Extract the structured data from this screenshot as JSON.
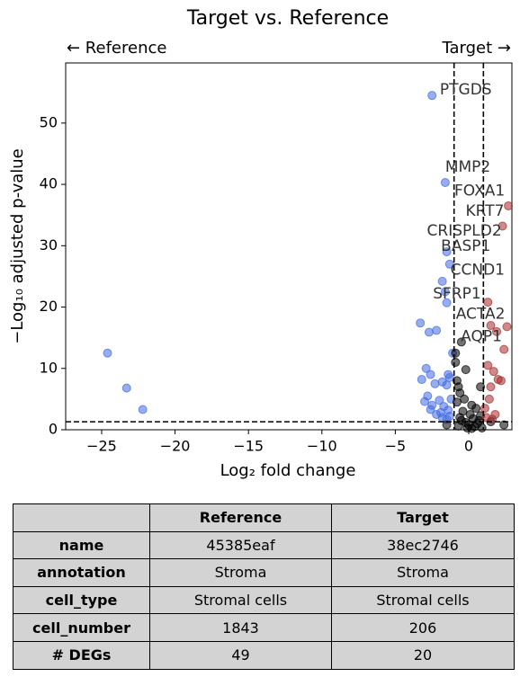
{
  "chart_data": {
    "type": "scatter",
    "title": "Target vs. Reference",
    "left_header": "← Reference",
    "right_header": "Target →",
    "xlabel": "Log₂ fold change",
    "ylabel": "−Log₁₀ adjusted p-value",
    "xlim": [
      -27.45,
      2.94
    ],
    "ylim": [
      0,
      59.8
    ],
    "xticks": [
      {
        "value": -25,
        "label": "−25"
      },
      {
        "value": -20,
        "label": "−20"
      },
      {
        "value": -15,
        "label": "−15"
      },
      {
        "value": -10,
        "label": "−10"
      },
      {
        "value": -5,
        "label": "−5"
      },
      0
    ],
    "yticks": [
      0,
      10,
      20,
      30,
      40,
      50
    ],
    "thresholds": {
      "x": [
        -1,
        1
      ],
      "y": 1.3
    },
    "series": [
      {
        "color": "#4169e1",
        "x": [
          -24.6,
          -23.3,
          -22.2,
          -2.5,
          -1.6,
          -1.5,
          -1.3,
          -1.8,
          -1.6,
          -1.5,
          -3.3,
          -2.7,
          -2.2,
          -1.1,
          -2.9,
          -2.6,
          -1.4,
          -1.3,
          -3.2,
          -2.3,
          -1.8,
          -1.5,
          -2.8,
          -3.0,
          -2.0,
          -1.2,
          -2.5,
          -1.7,
          -1.4,
          -2.2,
          -1.8,
          -1.5,
          -1.3,
          -2.6,
          -1.9
        ],
        "y": [
          12.5,
          6.8,
          3.3,
          54.5,
          40.3,
          29,
          27,
          24.2,
          22.5,
          20.7,
          17.4,
          15.9,
          16.2,
          12.5,
          10,
          9,
          9,
          8.5,
          8.2,
          7.5,
          7.8,
          7.3,
          5.5,
          4.6,
          4.8,
          5,
          4,
          3.8,
          3.2,
          2.5,
          2,
          1.7,
          2.2,
          3.3,
          2.8
        ]
      },
      {
        "color": "#000000",
        "x": [
          -0.5,
          -0.9,
          -0.9,
          -0.2,
          -0.8,
          -0.7,
          -0.6,
          -0.8,
          -0.3,
          0.8,
          0.2,
          0.5,
          -0.4,
          0.1,
          -0.6,
          0.3,
          0.7,
          -0.2,
          0,
          0.4,
          -0.7,
          0.6,
          -0.1,
          0.9,
          -0.5,
          0.2,
          1.5,
          2.4,
          -1.5,
          0.8
        ],
        "y": [
          14.3,
          12.5,
          11,
          9.8,
          8,
          7,
          6,
          4.5,
          5,
          7,
          4,
          3.5,
          3,
          2.5,
          2,
          1.8,
          1.5,
          1.2,
          0.8,
          0.5,
          0.6,
          1,
          0.3,
          0.3,
          1.5,
          0.2,
          1.3,
          0.8,
          0.8,
          2.3
        ]
      },
      {
        "color": "#a52a2a",
        "x": [
          2.7,
          2.3,
          1.3,
          1.5,
          2.6,
          1.9,
          2.4,
          1.7,
          2.0,
          1.5,
          1.3,
          2.2,
          1.4,
          1.1,
          1.8,
          1.6,
          1.2
        ],
        "y": [
          36.5,
          33.2,
          20.8,
          17,
          16.8,
          16,
          13.1,
          9.5,
          8.2,
          7,
          10.5,
          8,
          5,
          3.5,
          2.5,
          1.7,
          2
        ]
      }
    ],
    "annotations": [
      {
        "text": "PTGDS",
        "x": -0.2,
        "y": 55.4
      },
      {
        "text": "MMP2",
        "x": -0.06,
        "y": 42.8
      },
      {
        "text": "FOXA1",
        "x": 0.74,
        "y": 38.9
      },
      {
        "text": "KRT7",
        "x": 1.1,
        "y": 35.6
      },
      {
        "text": "CRISPLD2",
        "x": -0.3,
        "y": 32.4
      },
      {
        "text": "BASP1",
        "x": -0.2,
        "y": 29.9
      },
      {
        "text": "CCND1",
        "x": 0.6,
        "y": 26
      },
      {
        "text": "SFRP1",
        "x": -0.8,
        "y": 22.1
      },
      {
        "text": "ACTA2",
        "x": 0.8,
        "y": 18.8
      },
      {
        "text": "AQP1",
        "x": 0.86,
        "y": 15.2
      }
    ]
  },
  "table": {
    "columns": [
      "Reference",
      "Target"
    ],
    "rows": [
      [
        "name",
        "45385eaf",
        "38ec2746"
      ],
      [
        "annotation",
        "Stroma",
        "Stroma"
      ],
      [
        "cell_type",
        "Stromal cells",
        "Stromal cells"
      ],
      [
        "cell_number",
        "1843",
        "206"
      ],
      [
        "# DEGs",
        "49",
        "20"
      ]
    ]
  }
}
